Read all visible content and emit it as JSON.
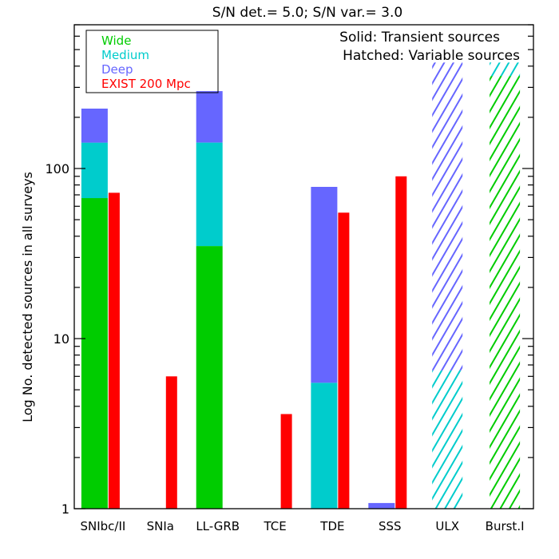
{
  "chart_data": {
    "type": "bar",
    "title": "S/N det.= 5.0; S/N var.= 3.0",
    "xlabel": "",
    "ylabel": "Log No. detected sources in all surveys",
    "yscale": "log",
    "ylim": [
      1,
      700
    ],
    "yticks": [
      {
        "value": 1,
        "label": "1"
      },
      {
        "value": 10,
        "label": "10"
      },
      {
        "value": 100,
        "label": "100"
      }
    ],
    "categories": [
      "SNIbc/II",
      "SNIa",
      "LL-GRB",
      "TCE",
      "TDE",
      "SSS",
      "ULX",
      "Burst.I"
    ],
    "legend": {
      "position": "top-left",
      "entries": [
        {
          "label": "Wide",
          "color": "#00cc00"
        },
        {
          "label": "Medium",
          "color": "#00cccc"
        },
        {
          "label": "Deep",
          "color": "#6666ff"
        },
        {
          "label": "EXIST 200 Mpc",
          "color": "#ff0000"
        }
      ]
    },
    "annotations": [
      "Solid: Transient sources",
      "Hatched: Variable sources"
    ],
    "survey_stacks": [
      {
        "category": "SNIbc/II",
        "style": "solid",
        "segments": [
          {
            "survey": "Wide",
            "top": 67
          },
          {
            "survey": "Medium",
            "top": 142
          },
          {
            "survey": "Deep",
            "top": 225
          }
        ]
      },
      {
        "category": "LL-GRB",
        "style": "solid",
        "segments": [
          {
            "survey": "Wide",
            "top": 35
          },
          {
            "survey": "Medium",
            "top": 142
          },
          {
            "survey": "Deep",
            "top": 285
          }
        ]
      },
      {
        "category": "TDE",
        "style": "solid",
        "segments": [
          {
            "survey": "Medium",
            "top": 5.5
          },
          {
            "survey": "Deep",
            "top": 78
          }
        ]
      },
      {
        "category": "SSS",
        "style": "solid",
        "segments": [
          {
            "survey": "Deep",
            "top": 1.08
          }
        ]
      },
      {
        "category": "ULX",
        "style": "hatched",
        "segments": [
          {
            "survey": "Medium",
            "top": 6.5
          },
          {
            "survey": "Deep",
            "top": 420
          }
        ]
      },
      {
        "category": "Burst.I",
        "style": "hatched",
        "segments": [
          {
            "survey": "Wide",
            "top": 350
          },
          {
            "survey": "Medium",
            "top": 420
          }
        ]
      }
    ],
    "exist_values": [
      {
        "category": "SNIbc/II",
        "value": 72
      },
      {
        "category": "SNIa",
        "value": 6
      },
      {
        "category": "TCE",
        "value": 3.6
      },
      {
        "category": "TDE",
        "value": 55
      },
      {
        "category": "SSS",
        "value": 90
      }
    ]
  }
}
